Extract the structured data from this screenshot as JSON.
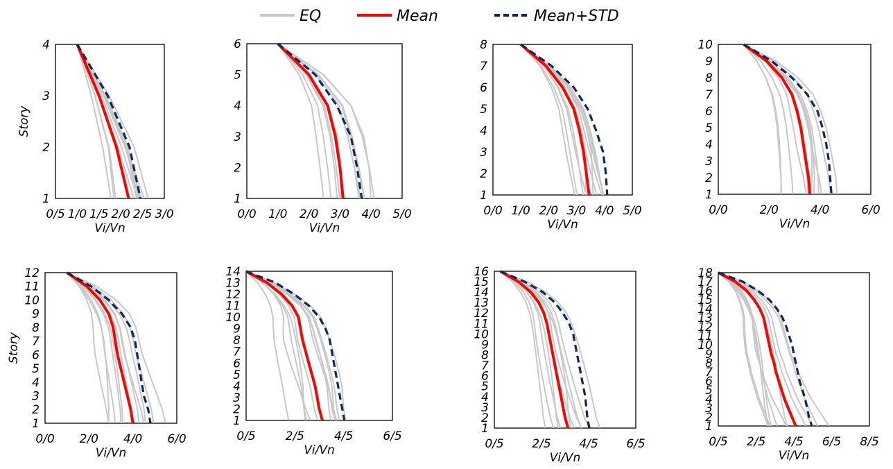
{
  "legend": {
    "items": [
      {
        "label": "EQ",
        "color": "#c8c8c8",
        "style": "solid"
      },
      {
        "label": "Mean",
        "color": "#ff0000",
        "style": "solid"
      },
      {
        "label": "Mean+STD",
        "color": "#0b2a5a",
        "style": "dashed"
      }
    ]
  },
  "colors": {
    "eq": "#c8c8c8",
    "mean": "#ff0000",
    "mean_std": "#0b2a5a"
  },
  "chart_data": [
    {
      "type": "line",
      "xlabel": "Vi/Vn",
      "ylabel": "Story",
      "xticks": [
        "0/5",
        "1/0",
        "1/5",
        "2/0",
        "2/5",
        "3/0"
      ],
      "xlim": [
        0.5,
        3.0
      ],
      "yticks": [
        "1",
        "2",
        "3",
        "4"
      ],
      "ylim": [
        1,
        4
      ],
      "series": [
        {
          "name": "Mean",
          "points": [
            [
              1.0,
              4
            ],
            [
              1.5,
              3
            ],
            [
              1.9,
              2
            ],
            [
              2.18,
              1
            ]
          ]
        },
        {
          "name": "Mean+STD",
          "points": [
            [
              1.0,
              4
            ],
            [
              1.7,
              3
            ],
            [
              2.2,
              2
            ],
            [
              2.45,
              1
            ]
          ]
        }
      ]
    },
    {
      "type": "line",
      "xlabel": "Vi/Vn",
      "ylabel": "",
      "xticks": [
        "0/0",
        "1/0",
        "2/0",
        "3/0",
        "4/0",
        "5/0"
      ],
      "xlim": [
        0,
        5
      ],
      "yticks": [
        "1",
        "2",
        "3",
        "4",
        "5",
        "6"
      ],
      "ylim": [
        1,
        6
      ],
      "series": [
        {
          "name": "Mean",
          "points": [
            [
              1.0,
              6
            ],
            [
              2.0,
              5
            ],
            [
              2.6,
              4
            ],
            [
              2.85,
              3
            ],
            [
              3.0,
              2
            ],
            [
              3.1,
              1
            ]
          ]
        },
        {
          "name": "Mean+STD",
          "points": [
            [
              1.0,
              6
            ],
            [
              2.2,
              5
            ],
            [
              2.9,
              4
            ],
            [
              3.35,
              3
            ],
            [
              3.55,
              2
            ],
            [
              3.7,
              1
            ]
          ]
        }
      ]
    },
    {
      "type": "line",
      "xlabel": "Vi/Vn",
      "ylabel": "",
      "xticks": [
        "0/0",
        "1/0",
        "2/0",
        "3/0",
        "4/0",
        "5/0"
      ],
      "xlim": [
        0,
        5
      ],
      "yticks": [
        "1",
        "2",
        "3",
        "4",
        "5",
        "6",
        "7",
        "8"
      ],
      "ylim": [
        1,
        8
      ],
      "series": [
        {
          "name": "Mean",
          "points": [
            [
              1.0,
              8
            ],
            [
              1.9,
              7
            ],
            [
              2.5,
              6
            ],
            [
              2.9,
              5
            ],
            [
              3.1,
              4
            ],
            [
              3.25,
              3
            ],
            [
              3.35,
              2
            ],
            [
              3.45,
              1
            ]
          ]
        },
        {
          "name": "Mean+STD",
          "points": [
            [
              1.0,
              8
            ],
            [
              2.1,
              7
            ],
            [
              2.9,
              6
            ],
            [
              3.4,
              5
            ],
            [
              3.7,
              4
            ],
            [
              3.95,
              3
            ],
            [
              4.05,
              2
            ],
            [
              4.1,
              1
            ]
          ]
        }
      ]
    },
    {
      "type": "line",
      "xlabel": "Vi/Vn",
      "ylabel": "",
      "xticks": [
        "0/0",
        "2/0",
        "4/0",
        "6/0"
      ],
      "xlim": [
        0,
        6
      ],
      "yticks": [
        "1",
        "2",
        "3",
        "4",
        "5",
        "6",
        "7",
        "8",
        "9",
        "10"
      ],
      "ylim": [
        1,
        10
      ],
      "series": [
        {
          "name": "Mean",
          "points": [
            [
              1.0,
              10
            ],
            [
              1.9,
              9
            ],
            [
              2.5,
              8
            ],
            [
              2.9,
              7
            ],
            [
              3.1,
              6
            ],
            [
              3.25,
              5
            ],
            [
              3.35,
              4
            ],
            [
              3.45,
              3
            ],
            [
              3.55,
              2
            ],
            [
              3.6,
              1
            ]
          ]
        },
        {
          "name": "Mean+STD",
          "points": [
            [
              1.0,
              10
            ],
            [
              2.1,
              9
            ],
            [
              2.9,
              8
            ],
            [
              3.5,
              7
            ],
            [
              3.9,
              6
            ],
            [
              4.1,
              5
            ],
            [
              4.25,
              4
            ],
            [
              4.35,
              3
            ],
            [
              4.4,
              2
            ],
            [
              4.45,
              1
            ]
          ]
        }
      ]
    },
    {
      "type": "line",
      "xlabel": "Vi/Vn",
      "ylabel": "Story",
      "xticks": [
        "0/0",
        "2/0",
        "4/0",
        "6/0"
      ],
      "xlim": [
        0,
        6
      ],
      "yticks": [
        "1",
        "2",
        "3",
        "4",
        "5",
        "6",
        "7",
        "8",
        "9",
        "10",
        "11",
        "12"
      ],
      "ylim": [
        1,
        12
      ],
      "series": [
        {
          "name": "Mean",
          "points": [
            [
              1.0,
              12
            ],
            [
              1.9,
              11
            ],
            [
              2.5,
              10
            ],
            [
              2.9,
              9
            ],
            [
              3.1,
              8
            ],
            [
              3.2,
              7
            ],
            [
              3.3,
              6
            ],
            [
              3.45,
              5
            ],
            [
              3.6,
              4
            ],
            [
              3.75,
              3
            ],
            [
              3.9,
              2
            ],
            [
              4.0,
              1
            ]
          ]
        },
        {
          "name": "Mean+STD",
          "points": [
            [
              1.0,
              12
            ],
            [
              2.1,
              11
            ],
            [
              2.9,
              10
            ],
            [
              3.5,
              9
            ],
            [
              3.9,
              8
            ],
            [
              4.1,
              7
            ],
            [
              4.2,
              6
            ],
            [
              4.3,
              5
            ],
            [
              4.4,
              4
            ],
            [
              4.5,
              3
            ],
            [
              4.7,
              2
            ],
            [
              4.8,
              1
            ]
          ]
        }
      ]
    },
    {
      "type": "line",
      "xlabel": "Vi/Vn",
      "ylabel": "",
      "xticks": [
        "0/5",
        "2/5",
        "4/5",
        "6/5"
      ],
      "xlim": [
        0.5,
        7.5
      ],
      "yticks": [
        "1",
        "2",
        "3",
        "4",
        "5",
        "6",
        "7",
        "8",
        "9",
        "10",
        "11",
        "12",
        "13",
        "14"
      ],
      "ylim": [
        1,
        14
      ],
      "series": [
        {
          "name": "Mean",
          "points": [
            [
              0.5,
              14
            ],
            [
              1.5,
              13
            ],
            [
              2.2,
              12
            ],
            [
              2.7,
              11
            ],
            [
              3.0,
              10
            ],
            [
              3.1,
              9
            ],
            [
              3.2,
              8
            ],
            [
              3.35,
              7
            ],
            [
              3.5,
              6
            ],
            [
              3.65,
              5
            ],
            [
              3.8,
              4
            ],
            [
              3.9,
              3
            ],
            [
              4.0,
              2
            ],
            [
              4.15,
              1
            ]
          ]
        },
        {
          "name": "Mean+STD",
          "points": [
            [
              0.5,
              14
            ],
            [
              1.9,
              13
            ],
            [
              2.8,
              12
            ],
            [
              3.5,
              11
            ],
            [
              4.0,
              10
            ],
            [
              4.3,
              9
            ],
            [
              4.5,
              8
            ],
            [
              4.6,
              7
            ],
            [
              4.7,
              6
            ],
            [
              4.8,
              5
            ],
            [
              4.9,
              4
            ],
            [
              5.0,
              3
            ],
            [
              5.1,
              2
            ],
            [
              5.2,
              1
            ]
          ]
        }
      ]
    },
    {
      "type": "line",
      "xlabel": "Vi/Vn",
      "ylabel": "",
      "xticks": [
        "0/5",
        "2/5",
        "4/5",
        "6/5"
      ],
      "xlim": [
        0.5,
        7.5
      ],
      "yticks": [
        "1",
        "2",
        "3",
        "4",
        "5",
        "6",
        "7",
        "8",
        "9",
        "10",
        "11",
        "12",
        "13",
        "14",
        "15",
        "16"
      ],
      "ylim": [
        1,
        16
      ],
      "series": [
        {
          "name": "Mean",
          "points": [
            [
              0.8,
              16
            ],
            [
              1.7,
              15
            ],
            [
              2.3,
              14
            ],
            [
              2.7,
              13
            ],
            [
              2.95,
              12
            ],
            [
              3.1,
              11
            ],
            [
              3.2,
              10
            ],
            [
              3.3,
              9
            ],
            [
              3.4,
              8
            ],
            [
              3.5,
              7
            ],
            [
              3.6,
              6
            ],
            [
              3.7,
              5
            ],
            [
              3.8,
              4
            ],
            [
              3.9,
              3
            ],
            [
              4.0,
              2
            ],
            [
              4.15,
              1
            ]
          ]
        },
        {
          "name": "Mean+STD",
          "points": [
            [
              0.8,
              16
            ],
            [
              2.0,
              15
            ],
            [
              2.9,
              14
            ],
            [
              3.5,
              13
            ],
            [
              3.9,
              12
            ],
            [
              4.2,
              11
            ],
            [
              4.4,
              10
            ],
            [
              4.5,
              9
            ],
            [
              4.6,
              8
            ],
            [
              4.7,
              7
            ],
            [
              4.8,
              6
            ],
            [
              4.9,
              5
            ],
            [
              5.0,
              4
            ],
            [
              5.05,
              3
            ],
            [
              5.1,
              2
            ],
            [
              5.2,
              1
            ]
          ]
        }
      ]
    },
    {
      "type": "line",
      "xlabel": "Vi/Vn",
      "ylabel": "",
      "xticks": [
        "0/5",
        "2/5",
        "4/5",
        "6/5",
        "8/5"
      ],
      "xlim": [
        0.5,
        8.5
      ],
      "yticks": [
        "1",
        "2",
        "3",
        "4",
        "5",
        "6",
        "7",
        "8",
        "9",
        "10",
        "11",
        "12",
        "13",
        "14",
        "15",
        "16",
        "17",
        "18"
      ],
      "ylim": [
        1,
        18
      ],
      "series": [
        {
          "name": "Mean",
          "points": [
            [
              0.5,
              18
            ],
            [
              1.4,
              17
            ],
            [
              2.0,
              16
            ],
            [
              2.4,
              15
            ],
            [
              2.7,
              14
            ],
            [
              2.9,
              13
            ],
            [
              3.0,
              12
            ],
            [
              3.1,
              11
            ],
            [
              3.2,
              10
            ],
            [
              3.3,
              9
            ],
            [
              3.45,
              8
            ],
            [
              3.55,
              7
            ],
            [
              3.7,
              6
            ],
            [
              3.85,
              5
            ],
            [
              4.0,
              4
            ],
            [
              4.2,
              3
            ],
            [
              4.4,
              2
            ],
            [
              4.6,
              1
            ]
          ]
        },
        {
          "name": "Mean+STD",
          "points": [
            [
              0.5,
              18
            ],
            [
              1.8,
              17
            ],
            [
              2.6,
              16
            ],
            [
              3.2,
              15
            ],
            [
              3.6,
              14
            ],
            [
              3.9,
              13
            ],
            [
              4.1,
              12
            ],
            [
              4.25,
              11
            ],
            [
              4.4,
              10
            ],
            [
              4.5,
              9
            ],
            [
              4.6,
              8
            ],
            [
              4.7,
              7
            ],
            [
              4.8,
              6
            ],
            [
              4.95,
              5
            ],
            [
              5.1,
              4
            ],
            [
              5.2,
              3
            ],
            [
              5.3,
              2
            ],
            [
              5.45,
              1
            ]
          ]
        }
      ]
    }
  ]
}
